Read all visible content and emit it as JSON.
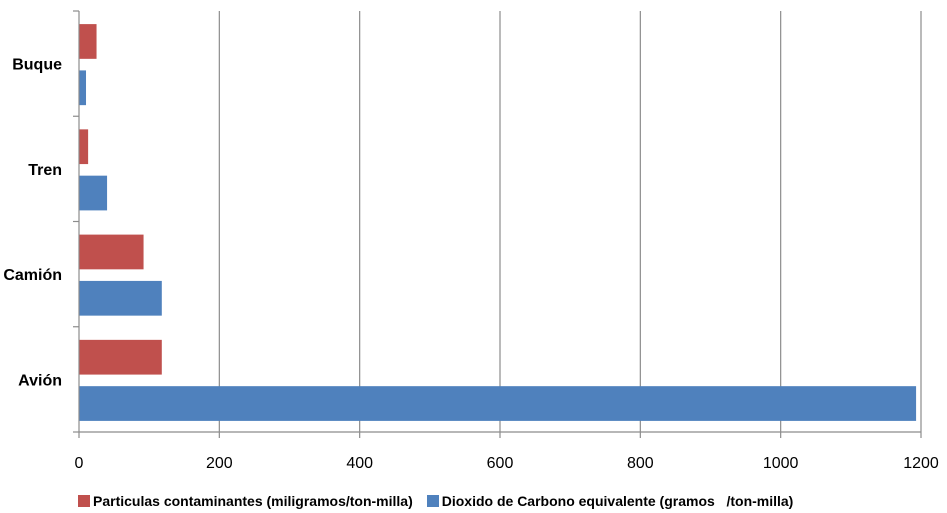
{
  "chart_data": {
    "type": "bar",
    "orientation": "horizontal",
    "categories": [
      "Buque",
      "Tren",
      "Camión",
      "Avión"
    ],
    "series": [
      {
        "name": "Particulas contaminantes (miligramos/ton-milla)",
        "color": "#c0504d",
        "values": [
          25,
          13,
          92,
          118
        ]
      },
      {
        "name": "Dioxido de Carbono equivalente (gramos   /ton-milla)",
        "color": "#4f81bd",
        "values": [
          10,
          40,
          118,
          1193
        ]
      }
    ],
    "xlim": [
      0,
      1200
    ],
    "xticks": [
      0,
      200,
      400,
      600,
      800,
      1000,
      1200
    ],
    "grid": true,
    "legend_position": "bottom",
    "title": "",
    "xlabel": "",
    "ylabel": ""
  }
}
